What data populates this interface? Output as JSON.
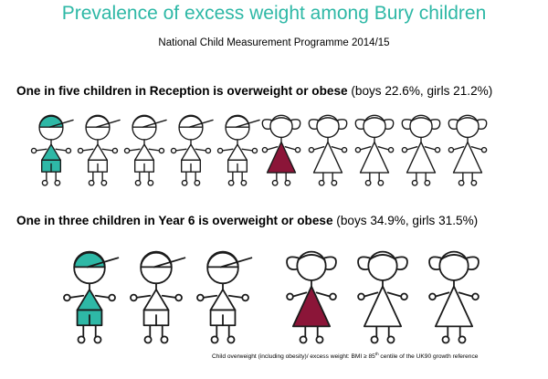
{
  "title": "Prevalence of excess weight among Bury children",
  "subtitle": "National Child Measurement Programme 2014/15",
  "reception": {
    "headline": "One in five children in Reception is overweight or obese",
    "detail": "(boys 22.6%, girls 21.2%)",
    "boys_prevalence_pct": 22.6,
    "girls_prevalence_pct": 21.2,
    "figures": [
      {
        "type": "boy",
        "highlighted": true
      },
      {
        "type": "boy",
        "highlighted": false
      },
      {
        "type": "boy",
        "highlighted": false
      },
      {
        "type": "boy",
        "highlighted": false
      },
      {
        "type": "boy",
        "highlighted": false
      },
      {
        "type": "girl",
        "highlighted": true
      },
      {
        "type": "girl",
        "highlighted": false
      },
      {
        "type": "girl",
        "highlighted": false
      },
      {
        "type": "girl",
        "highlighted": false
      },
      {
        "type": "girl",
        "highlighted": false
      }
    ]
  },
  "year6": {
    "headline": "One in three children in Year 6 is overweight or obese",
    "detail": "(boys 34.9%, girls 31.5%)",
    "boys_prevalence_pct": 34.9,
    "girls_prevalence_pct": 31.5,
    "figures": [
      {
        "type": "boy",
        "highlighted": true
      },
      {
        "type": "boy",
        "highlighted": false
      },
      {
        "type": "boy",
        "highlighted": false
      },
      {
        "type": "girl",
        "highlighted": true
      },
      {
        "type": "girl",
        "highlighted": false
      },
      {
        "type": "girl",
        "highlighted": false
      }
    ]
  },
  "footnote": {
    "before": "Child overweight (including obesity)/ excess weight: BMI ≥ 85",
    "sup": "th",
    "after": " centile of the UK90 growth reference"
  },
  "colors": {
    "title": "#2eb8a6",
    "boy_highlight": "#2eb8a6",
    "girl_highlight": "#8b1538",
    "outline": "#1a1a1a"
  }
}
